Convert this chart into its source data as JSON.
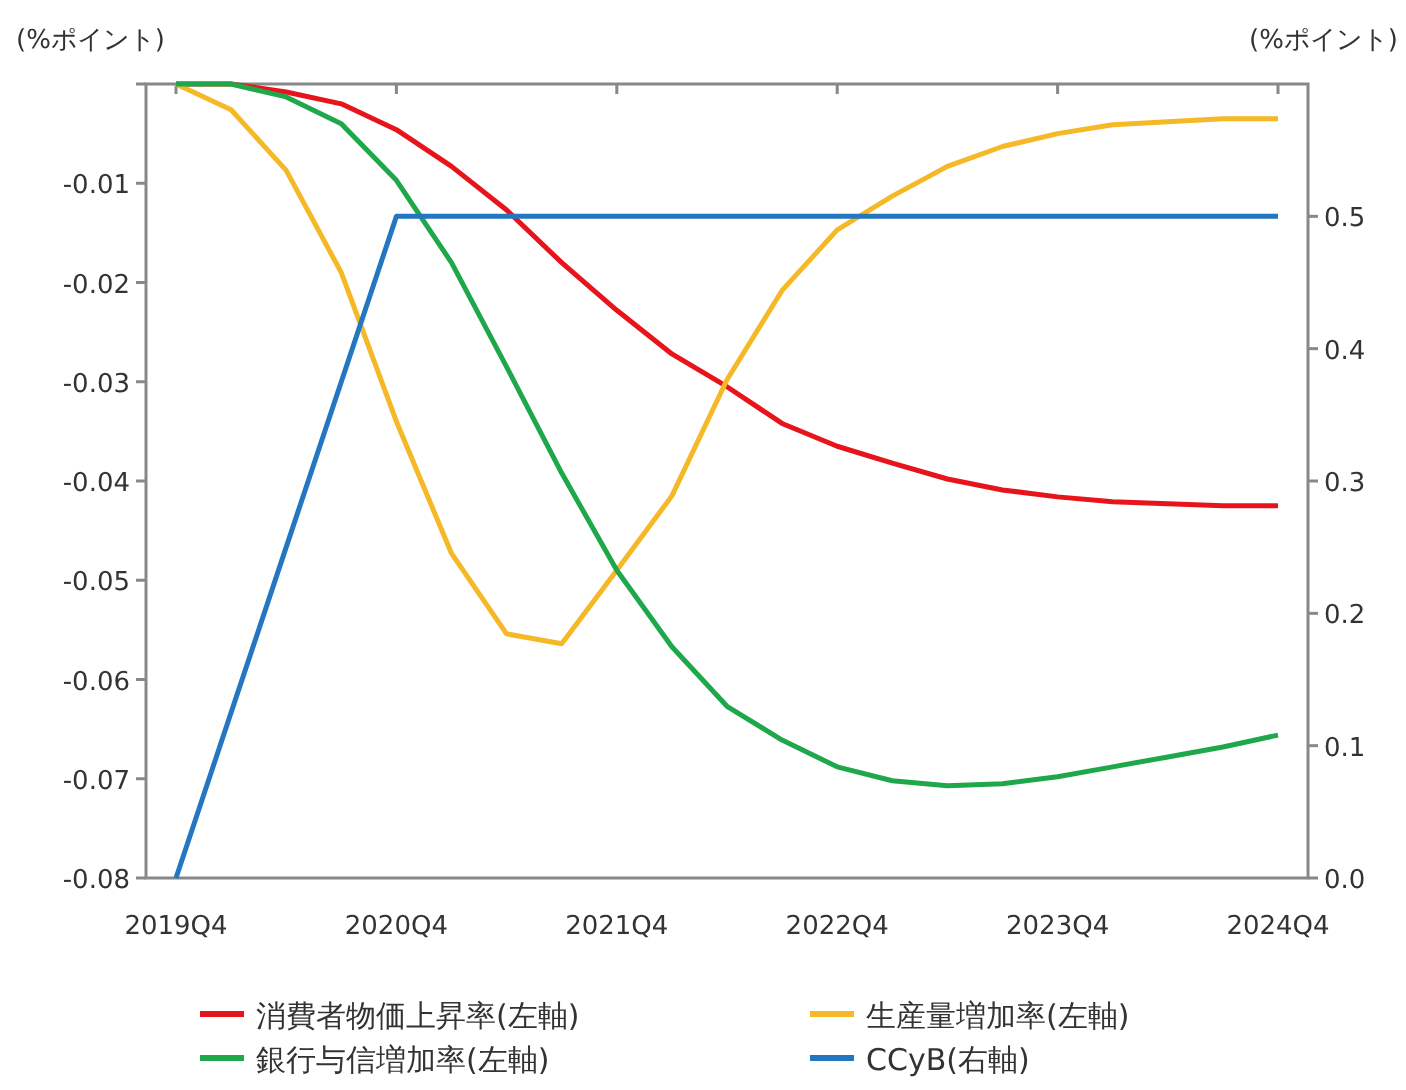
{
  "chart_data": {
    "type": "line",
    "ylabel": "(%ポイント)",
    "y2label": "(%ポイント)",
    "categories": [
      "2019Q4",
      null,
      null,
      null,
      "2020Q4",
      null,
      null,
      null,
      "2021Q4",
      null,
      null,
      null,
      "2022Q4",
      null,
      null,
      null,
      "2023Q4",
      null,
      null,
      null,
      "2024Q4"
    ],
    "series": [
      {
        "name": "消費者物価上昇率(左軸)",
        "color": "#e8141c",
        "values": [
          0,
          0,
          -0.0008,
          -0.002,
          -0.0046,
          -0.0083,
          -0.0127,
          -0.018,
          -0.0228,
          -0.0272,
          -0.0305,
          -0.0342,
          -0.0365,
          -0.0382,
          -0.0398,
          -0.0409,
          -0.0416,
          -0.0421,
          -0.0423,
          -0.0425,
          -0.0425
        ]
      },
      {
        "name": "生産量増加率(左軸)",
        "color": "#f5b827",
        "values": [
          0,
          -0.0026,
          -0.0087,
          -0.019,
          -0.034,
          -0.0473,
          -0.0554,
          -0.0564,
          -0.049,
          -0.0415,
          -0.0298,
          -0.0208,
          -0.0147,
          -0.0113,
          -0.0083,
          -0.0063,
          -0.005,
          -0.0041,
          -0.0038,
          -0.0035,
          -0.0035
        ]
      },
      {
        "name": "銀行与信増加率(左軸)",
        "color": "#1fa84b",
        "values": [
          0,
          0,
          -0.0013,
          -0.004,
          -0.0097,
          -0.018,
          -0.0285,
          -0.0392,
          -0.049,
          -0.0567,
          -0.0627,
          -0.0661,
          -0.0688,
          -0.0702,
          -0.0707,
          -0.0705,
          -0.0698,
          -0.0688,
          -0.0678,
          -0.0668,
          -0.0656
        ]
      },
      {
        "name": "CCyB(右軸)",
        "color": "#2277c0",
        "axis": "y2",
        "values": [
          0,
          0.125,
          0.25,
          0.375,
          0.5,
          0.5,
          0.5,
          0.5,
          0.5,
          0.5,
          0.5,
          0.5,
          0.5,
          0.5,
          0.5,
          0.5,
          0.5,
          0.5,
          0.5,
          0.5,
          0.5
        ]
      }
    ],
    "ylim": [
      -0.08,
      0
    ],
    "yticks": [
      -0.08,
      -0.07,
      -0.06,
      -0.05,
      -0.04,
      -0.03,
      -0.02,
      -0.01,
      {
        "value": 0,
        "label": null
      }
    ],
    "y2lim": [
      0,
      0.6
    ],
    "y2ticks": [
      {
        "value": 0,
        "label": "0.0"
      },
      {
        "value": 0.1,
        "label": "0.1"
      },
      {
        "value": 0.2,
        "label": "0.2"
      },
      {
        "value": 0.3,
        "label": "0.3"
      },
      {
        "value": 0.4,
        "label": "0.4"
      },
      {
        "value": 0.5,
        "label": "0.5"
      }
    ],
    "legend": "bottom",
    "grid": false
  }
}
